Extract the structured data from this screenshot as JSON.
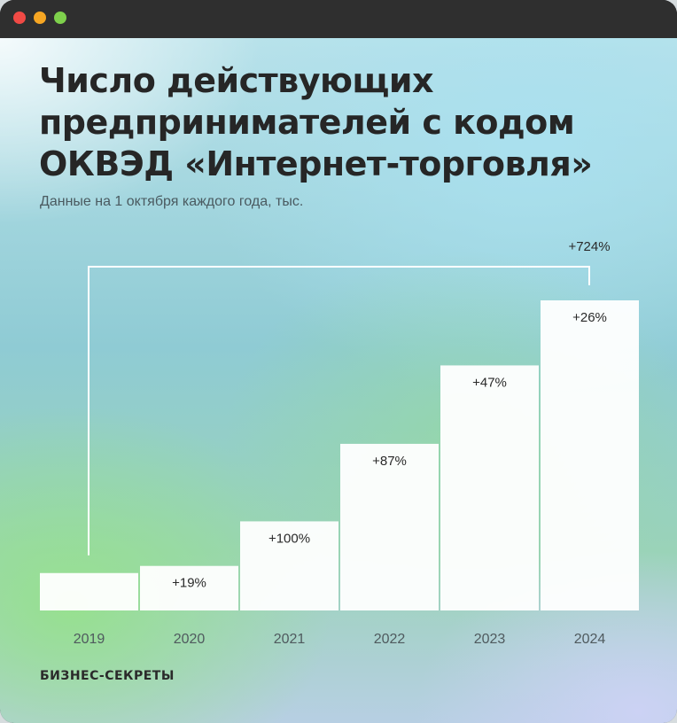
{
  "window": {
    "colors": {
      "close": "#f04a45",
      "minimize": "#f6a623",
      "maximize": "#7ed04c"
    }
  },
  "title_lines": [
    "Число действующих",
    "предпринимателей с кодом",
    "ОКВЭД «Интернет-торговля»"
  ],
  "subtitle": "Данные на 1 октября каждого года, тыс.",
  "brand": "БИЗНЕС-СЕКРЕТЫ",
  "chart_data": {
    "type": "bar",
    "categories": [
      "2019",
      "2020",
      "2021",
      "2022",
      "2023",
      "2024"
    ],
    "values": [
      42,
      50,
      100,
      187,
      275,
      348
    ],
    "ylim": [
      0,
      348
    ],
    "bar_labels": [
      "",
      "+19%",
      "+100%",
      "+87%",
      "+47%",
      "+26%"
    ],
    "total_change": {
      "label": "+724%",
      "from": "2019",
      "to": "2024"
    },
    "grid": false,
    "legend": "none",
    "bar_color": "#ffffff"
  }
}
